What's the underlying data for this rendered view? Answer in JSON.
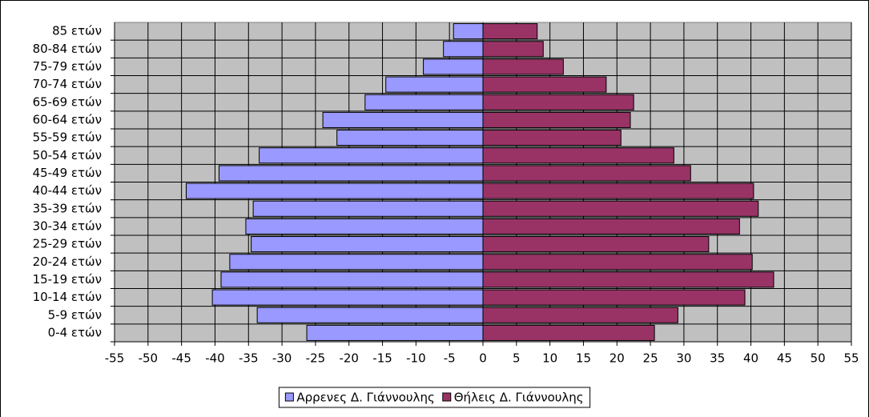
{
  "chart_data": {
    "type": "bar",
    "orientation": "horizontal",
    "categories": [
      "0-4 ετών",
      "5-9 ετών",
      "10-14 ετών",
      "15-19 ετών",
      "20-24 ετών",
      "25-29 ετών",
      "30-34 ετών",
      "35-39 ετών",
      "40-44 ετών",
      "45-49 ετών",
      "50-54 ετών",
      "55-59 ετών",
      "60-64 ετών",
      "65-69 ετών",
      "70-74 ετών",
      "75-79 ετών",
      "80-84 ετών",
      "85 ετών"
    ],
    "series": [
      {
        "name": "Αρρενες Δ. Γιάννουλης",
        "color": "#9999ff",
        "values": [
          -26.3,
          -33.7,
          -40.4,
          -39.1,
          -37.8,
          -34.6,
          -35.4,
          -34.3,
          -44.3,
          -39.4,
          -33.4,
          -21.8,
          -23.9,
          -17.6,
          -14.5,
          -8.9,
          -5.9,
          -4.4
        ]
      },
      {
        "name": "Θήλεις Δ. Γιάννουλης",
        "color": "#993366",
        "values": [
          25.6,
          29.1,
          39.1,
          43.4,
          40.2,
          33.7,
          38.3,
          41.1,
          40.4,
          31.0,
          28.5,
          20.6,
          22.0,
          22.5,
          18.4,
          12.0,
          9.0,
          8.1
        ]
      }
    ],
    "xlim": [
      -55,
      55
    ],
    "xticks": [
      -55,
      -50,
      -45,
      -40,
      -35,
      -30,
      -25,
      -20,
      -15,
      -10,
      -5,
      0,
      5,
      10,
      15,
      20,
      25,
      30,
      35,
      40,
      45,
      50,
      55
    ],
    "grid": true,
    "legend": "bottom"
  }
}
